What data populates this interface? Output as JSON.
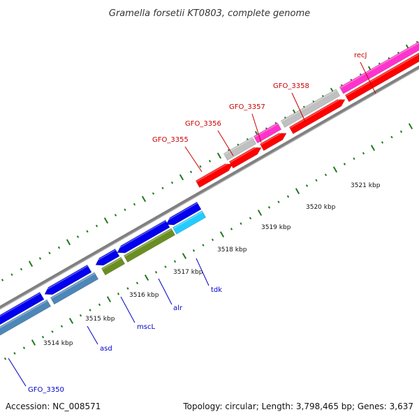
{
  "title": "Gramella forsetii KT0803, complete genome",
  "footer": {
    "accession": "Accession: NC_008571",
    "summary": "Topology: circular; Length: 3,798,465 bp; Genes: 3,637"
  },
  "colors": {
    "backbone": "#808080",
    "tick": "#1f7a1f",
    "label_forward": "#cc0000",
    "label_reverse": "#0000cc",
    "red": "#ff0000",
    "gray": "#c0c0c0",
    "magenta": "#ff33cc",
    "blue": "#0000ee",
    "steel": "#4d86b8",
    "olive": "#6b8e23",
    "cyan": "#22ccff"
  },
  "kbp_labels": [
    "3514 kbp",
    "3515 kbp",
    "3516 kbp",
    "3517 kbp",
    "3518 kbp",
    "3519 kbp",
    "3520 kbp",
    "3521 kbp"
  ],
  "gene_labels": {
    "forward": [
      "GFO_3355",
      "GFO_3356",
      "GFO_3357",
      "GFO_3358",
      "recJ"
    ],
    "reverse": [
      "GFO_3350",
      "asd",
      "mscL",
      "alr",
      "tdk"
    ]
  }
}
